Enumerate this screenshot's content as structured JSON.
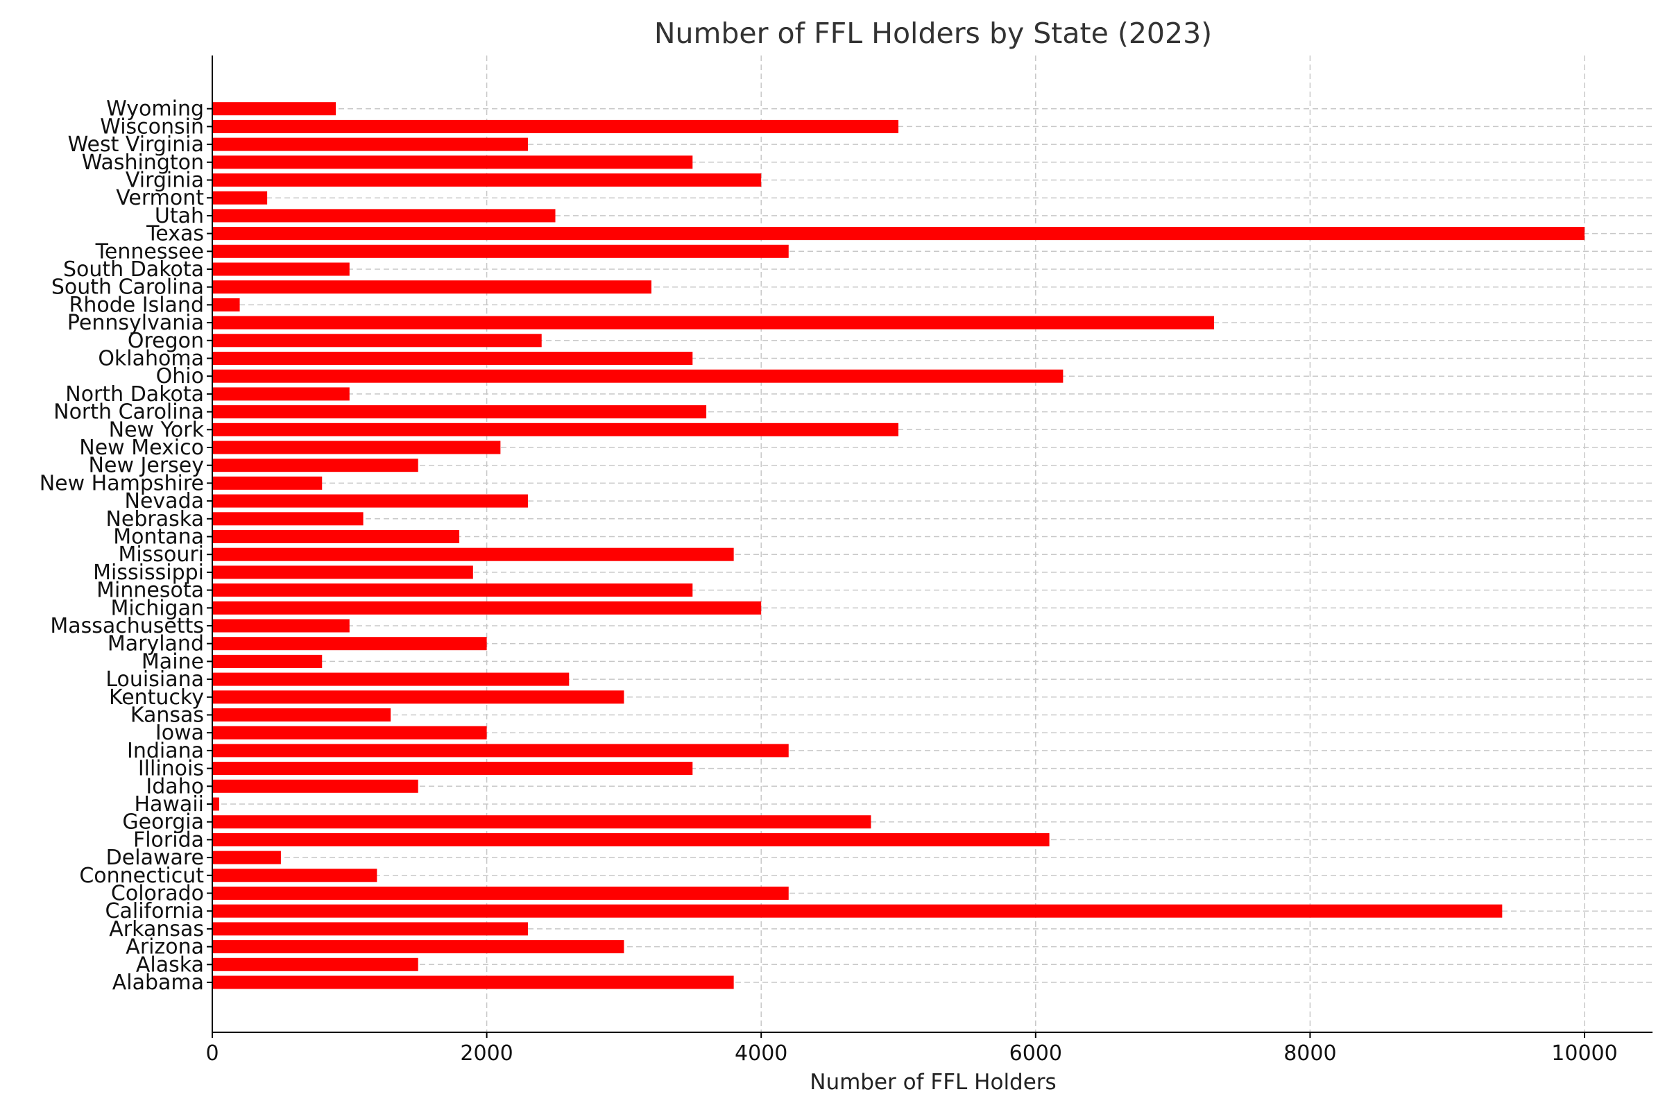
{
  "chart_data": {
    "type": "bar",
    "orientation": "horizontal",
    "title": "Number of FFL Holders by State (2023)",
    "xlabel": "Number of FFL Holders",
    "ylabel": "",
    "xlim": [
      0,
      10500
    ],
    "xticks": [
      0,
      2000,
      4000,
      6000,
      8000,
      10000
    ],
    "grid": true,
    "bar_color": "#ff0000",
    "categories": [
      "Alabama",
      "Alaska",
      "Arizona",
      "Arkansas",
      "California",
      "Colorado",
      "Connecticut",
      "Delaware",
      "Florida",
      "Georgia",
      "Hawaii",
      "Idaho",
      "Illinois",
      "Indiana",
      "Iowa",
      "Kansas",
      "Kentucky",
      "Louisiana",
      "Maine",
      "Maryland",
      "Massachusetts",
      "Michigan",
      "Minnesota",
      "Mississippi",
      "Missouri",
      "Montana",
      "Nebraska",
      "Nevada",
      "New Hampshire",
      "New Jersey",
      "New Mexico",
      "New York",
      "North Carolina",
      "North Dakota",
      "Ohio",
      "Oklahoma",
      "Oregon",
      "Pennsylvania",
      "Rhode Island",
      "South Carolina",
      "South Dakota",
      "Tennessee",
      "Texas",
      "Utah",
      "Vermont",
      "Virginia",
      "Washington",
      "West Virginia",
      "Wisconsin",
      "Wyoming"
    ],
    "values": [
      3800,
      1500,
      3000,
      2300,
      9400,
      4200,
      1200,
      500,
      6100,
      4800,
      50,
      1500,
      3500,
      4200,
      2000,
      1300,
      3000,
      2600,
      800,
      2000,
      1000,
      4000,
      3500,
      1900,
      3800,
      1800,
      1100,
      2300,
      800,
      1500,
      2100,
      5000,
      3600,
      1000,
      6200,
      3500,
      2400,
      7300,
      200,
      3200,
      1000,
      4200,
      10000,
      2500,
      400,
      4000,
      3500,
      2300,
      5000,
      900
    ]
  }
}
